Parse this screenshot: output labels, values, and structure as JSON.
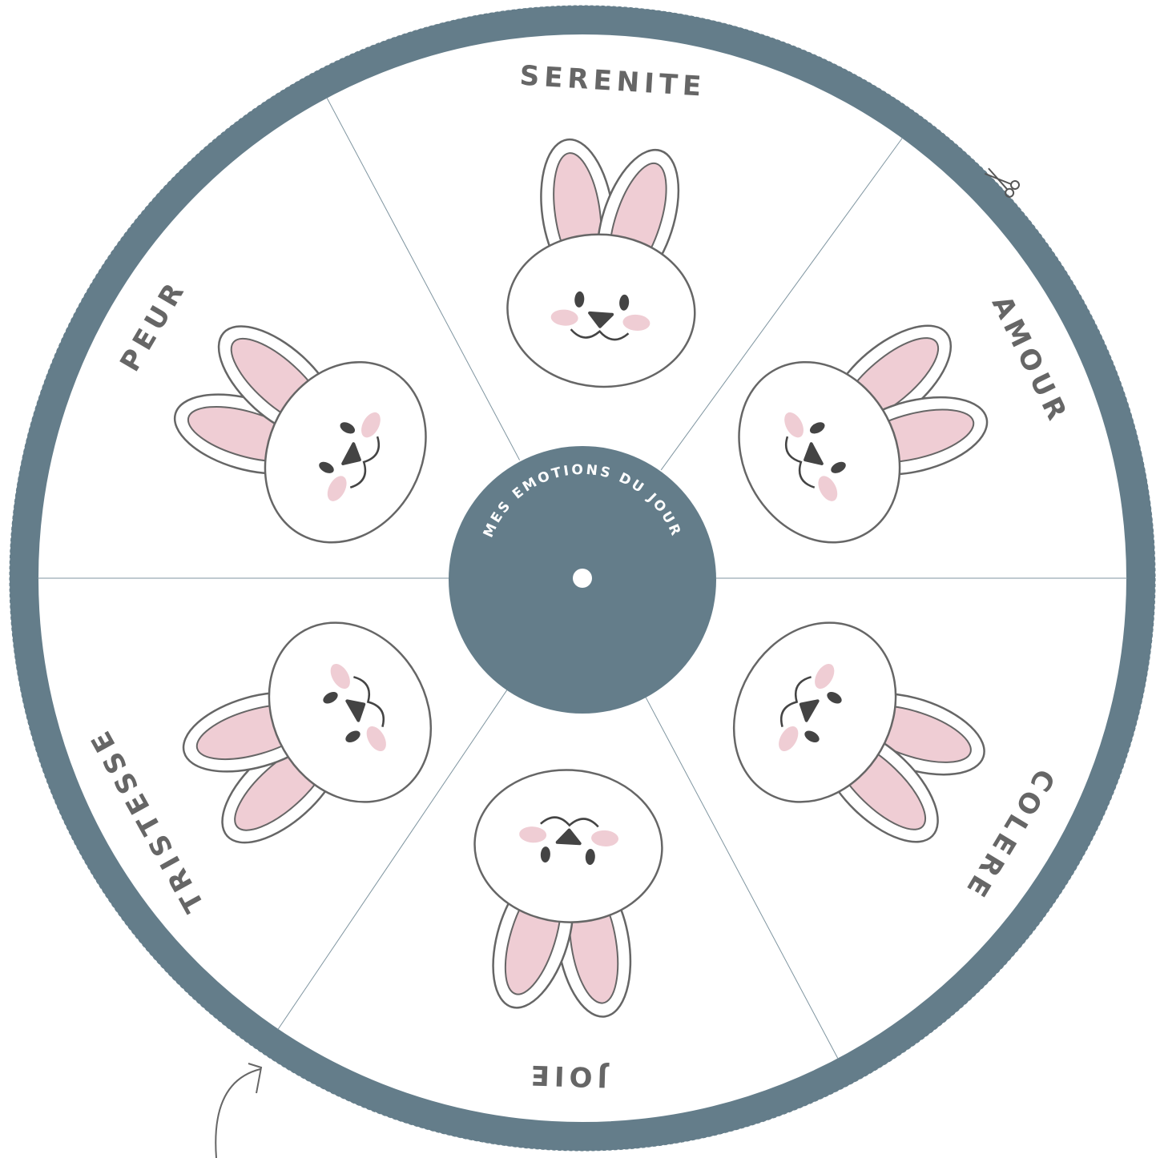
{
  "center_title": "MES EMOTIONS DU JOUR",
  "sectors": [
    {
      "label": "SERENITE"
    },
    {
      "label": "AMOUR"
    },
    {
      "label": "COLERE"
    },
    {
      "label": "JOIE"
    },
    {
      "label": "TRISTESSE"
    },
    {
      "label": "PEUR"
    }
  ]
}
